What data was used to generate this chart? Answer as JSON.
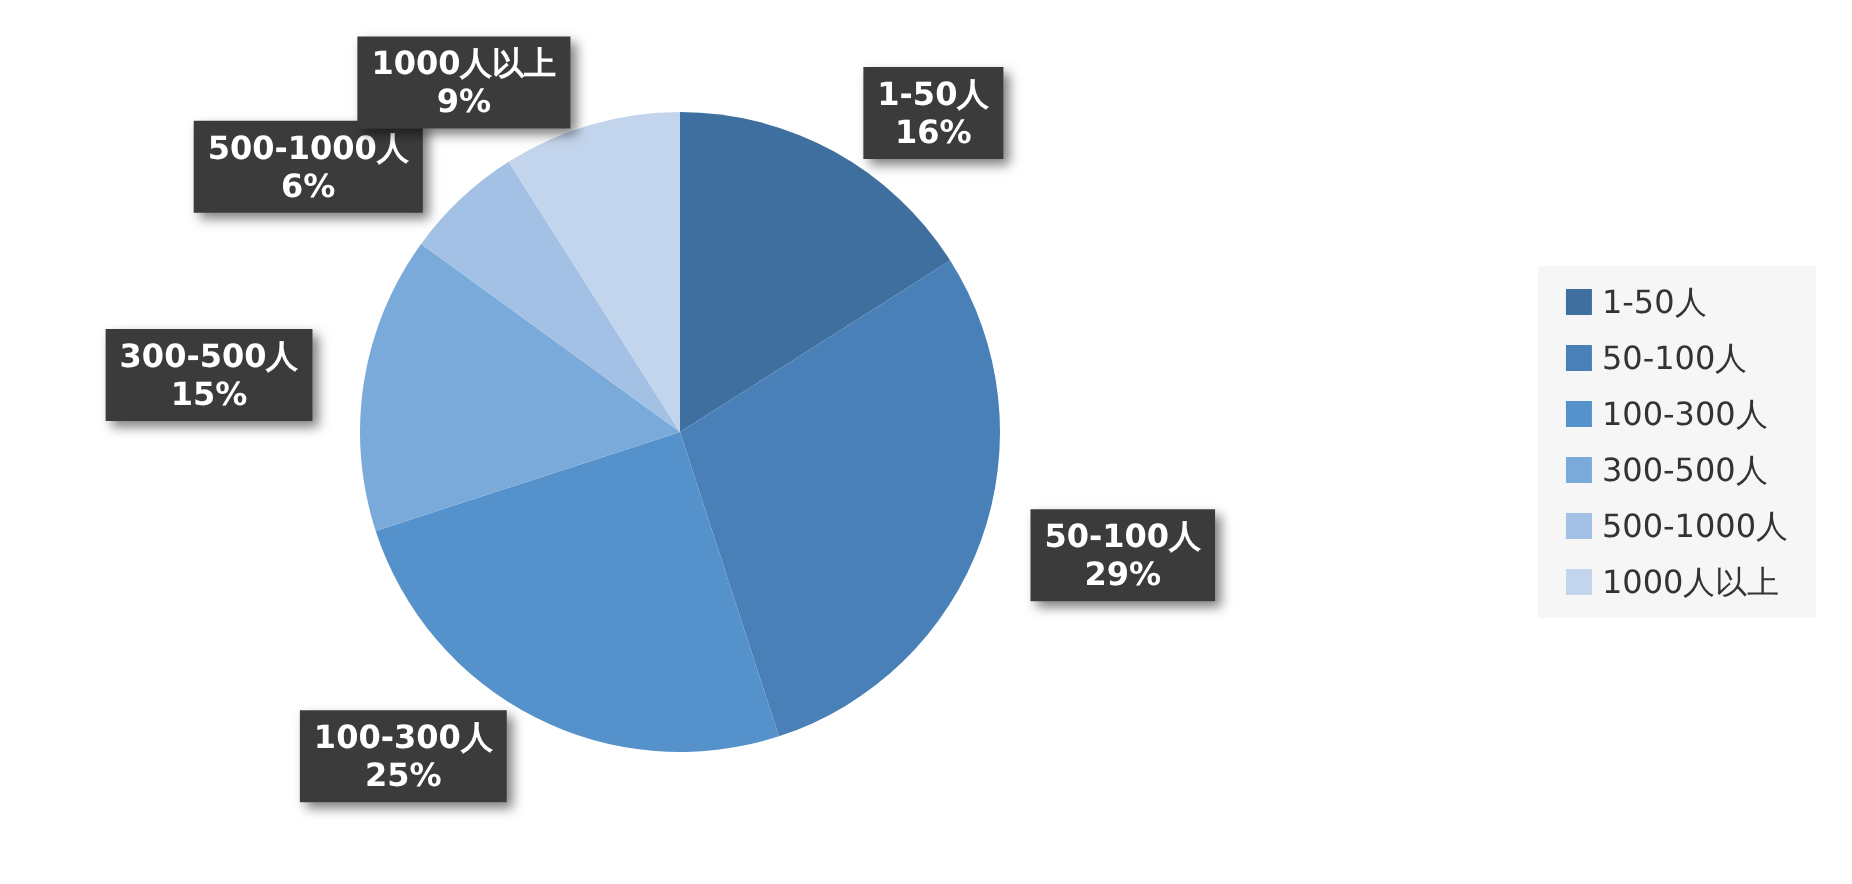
{
  "chart_data": {
    "type": "pie",
    "categories": [
      "1-50人",
      "50-100人",
      "100-300人",
      "300-500人",
      "500-1000人",
      "1000人以上"
    ],
    "values": [
      16,
      29,
      25,
      15,
      6,
      9
    ],
    "value_labels": [
      "16%",
      "29%",
      "25%",
      "15%",
      "6%",
      "9%"
    ],
    "colors": [
      "#3f6f9e",
      "#4a80b8",
      "#5592cc",
      "#7aaad9",
      "#a2c1e5",
      "#c3d5ec"
    ],
    "legend": "right"
  }
}
